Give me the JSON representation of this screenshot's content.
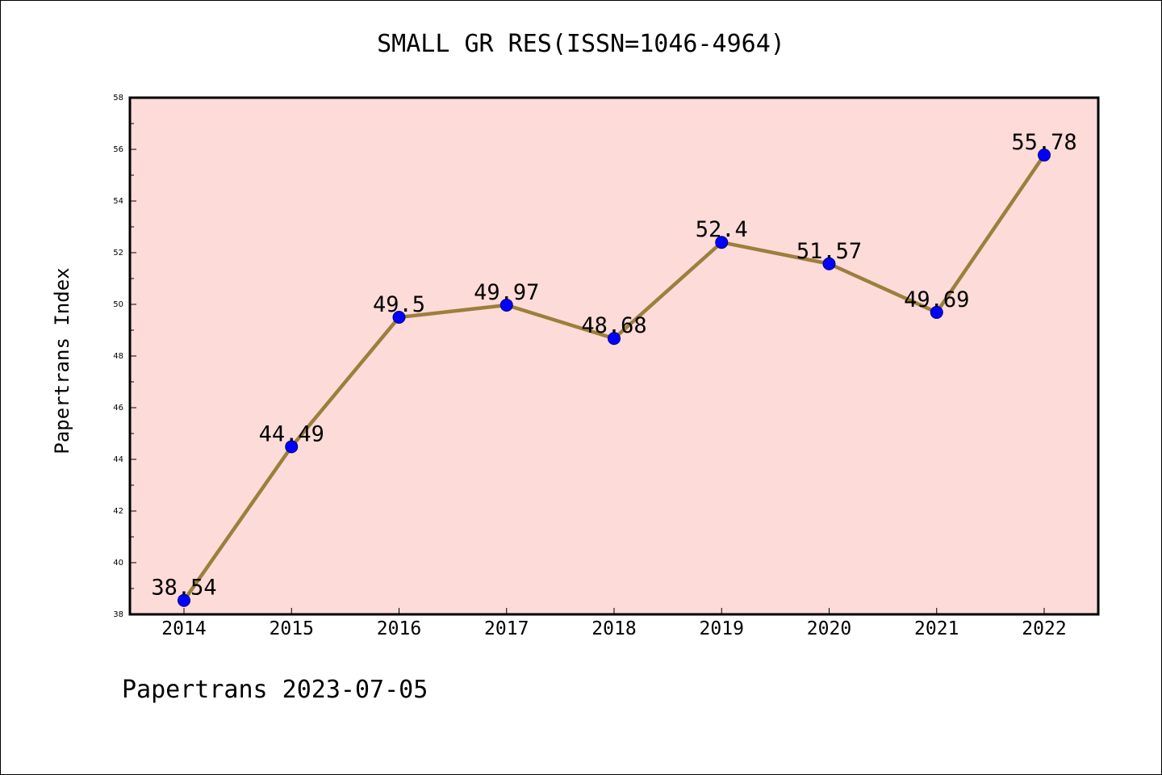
{
  "chart_data": {
    "type": "line",
    "title": "SMALL GR RES(ISSN=1046-4964)",
    "xlabel": "",
    "ylabel": "Papertrans Index",
    "categories": [
      "2014",
      "2015",
      "2016",
      "2017",
      "2018",
      "2019",
      "2020",
      "2021",
      "2022"
    ],
    "values": [
      38.54,
      44.49,
      49.5,
      49.97,
      48.68,
      52.4,
      51.57,
      49.69,
      55.78
    ],
    "data_labels": [
      "38.54",
      "44.49",
      "49.5",
      "49.97",
      "48.68",
      "52.4",
      "51.57",
      "49.69",
      "55.78"
    ],
    "ylim": [
      38,
      58
    ],
    "yticks": [
      38,
      40,
      42,
      44,
      46,
      48,
      50,
      52,
      54,
      56,
      58
    ],
    "grid": false,
    "colors": {
      "plot_background": "#fddbd8",
      "line": "#9b7f3c",
      "marker": "#0000ff",
      "marker_edge": "#000080"
    }
  },
  "footer": {
    "note": "Papertrans 2023-07-05"
  }
}
